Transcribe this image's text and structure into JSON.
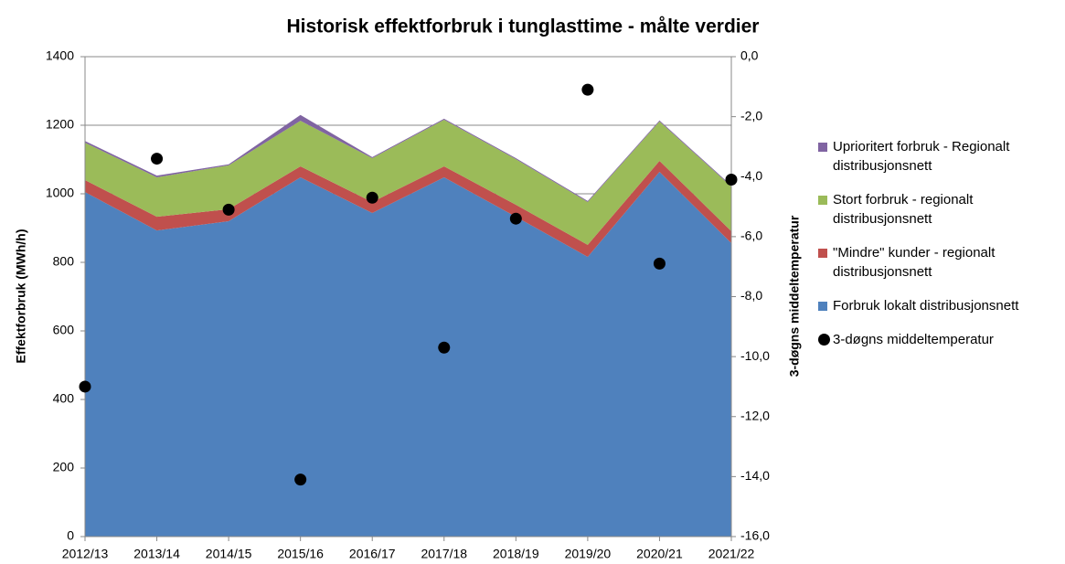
{
  "chart_data": {
    "type": "area",
    "title": "Historisk effektforbruk i tunglasttime - målte verdier",
    "y_label": "Effektforbruk (MWh/h)",
    "y2_label": "3-døgns middeltemperatur",
    "categories": [
      "2012/13",
      "2013/14",
      "2014/15",
      "2015/16",
      "2016/17",
      "2017/18",
      "2018/19",
      "2019/20",
      "2020/21",
      "2021/22"
    ],
    "series": [
      {
        "name": "Forbruk lokalt distribusjonsnett",
        "color": "#4f81bd",
        "values": [
          1005,
          893,
          920,
          1048,
          944,
          1048,
          933,
          816,
          1064,
          856
        ]
      },
      {
        "name": "\"Mindre\" kunder - regionalt distribusjonsnett",
        "color": "#c0504d",
        "values": [
          35,
          40,
          35,
          32,
          32,
          32,
          35,
          35,
          32,
          35
        ]
      },
      {
        "name": "Stort forbruk - regionalt distribusjonsnett",
        "color": "#9bbb59",
        "values": [
          109,
          115,
          128,
          133,
          128,
          136,
          133,
          125,
          115,
          130
        ]
      },
      {
        "name": "Uprioritert forbruk - Regionalt distribusjonsnett",
        "color": "#8064a2",
        "values": [
          5,
          5,
          3,
          17,
          3,
          3,
          3,
          3,
          3,
          3
        ]
      },
      {
        "name": "3-døgns middeltemperatur",
        "color": "#000000",
        "type": "scatter",
        "axis": "y2",
        "values": [
          -11.0,
          -3.4,
          -5.1,
          -14.1,
          -4.7,
          -9.7,
          -5.4,
          -1.1,
          -6.9,
          -4.1
        ]
      }
    ],
    "ylim": [
      0,
      1400
    ],
    "yticks": [
      0,
      200,
      400,
      600,
      800,
      1000,
      1200,
      1400
    ],
    "y2lim": [
      -16,
      0
    ],
    "y2ticks": [
      {
        "value": 0,
        "label": "0,0"
      },
      {
        "value": -2,
        "label": "-2,0"
      },
      {
        "value": -4,
        "label": "-4,0"
      },
      {
        "value": -6,
        "label": "-6,0"
      },
      {
        "value": -8,
        "label": "-8,0"
      },
      {
        "value": -10,
        "label": "-10,0"
      },
      {
        "value": -12,
        "label": "-12,0"
      },
      {
        "value": -14,
        "label": "-14,0"
      },
      {
        "value": -16,
        "label": "-16,0"
      }
    ],
    "grid": true,
    "legend": "right"
  }
}
